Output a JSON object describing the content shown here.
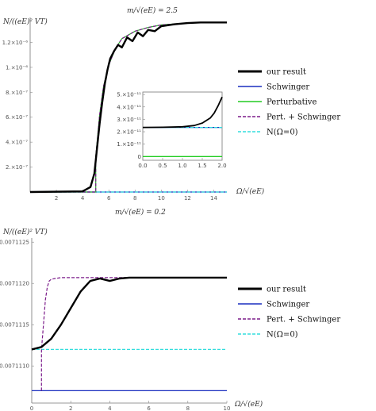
{
  "chart_data": [
    {
      "type": "line",
      "title": "m/√(eE) = 2.5",
      "ylabel": "N/((eE)² VT)",
      "xlabel": "Ω/√(eE)",
      "xlim": [
        0,
        15
      ],
      "ylim": [
        0,
        1.4e-06
      ],
      "x_ticks": [
        2,
        4,
        6,
        8,
        10,
        12,
        14
      ],
      "y_ticks": [
        {
          "value": 2e-07,
          "label": "2.×10⁻⁷"
        },
        {
          "value": 4e-07,
          "label": "4.×10⁻⁷"
        },
        {
          "value": 6e-07,
          "label": "6.×10⁻⁷"
        },
        {
          "value": 8e-07,
          "label": "8.×10⁻⁷"
        },
        {
          "value": 1e-06,
          "label": "1.×10⁻⁶"
        },
        {
          "value": 1.2e-06,
          "label": "1.2×10⁻⁶"
        }
      ],
      "series": [
        {
          "name": "our result",
          "color": "#000000",
          "style": "solid",
          "x": [
            0,
            4.0,
            4.6,
            4.9,
            5.1,
            5.3,
            5.5,
            5.7,
            5.9,
            6.1,
            6.4,
            6.7,
            7.0,
            7.4,
            7.8,
            8.2,
            8.6,
            9.0,
            9.5,
            10,
            11,
            12,
            13,
            14,
            15
          ],
          "y": [
            0,
            5e-09,
            4e-08,
            1.5e-07,
            3.5e-07,
            5.5e-07,
            7.2e-07,
            8.7e-07,
            9.8e-07,
            1.07e-06,
            1.13e-06,
            1.18e-06,
            1.16e-06,
            1.24e-06,
            1.21e-06,
            1.28e-06,
            1.25e-06,
            1.3e-06,
            1.29e-06,
            1.33e-06,
            1.345e-06,
            1.355e-06,
            1.36e-06,
            1.36e-06,
            1.36e-06
          ]
        },
        {
          "name": "Schwinger",
          "color": "#1a2fbf",
          "style": "solid",
          "x": [
            0,
            15
          ],
          "y": [
            0,
            0
          ]
        },
        {
          "name": "Perturbative",
          "color": "#22cc22",
          "style": "solid",
          "x": [
            0,
            5.0,
            5.0,
            5.3,
            5.6,
            6.0,
            6.5,
            7.0,
            8,
            9,
            10,
            12,
            15
          ],
          "y": [
            0,
            0,
            2.8e-07,
            6.2e-07,
            8.5e-07,
            1.02e-06,
            1.15e-06,
            1.23e-06,
            1.29e-06,
            1.32e-06,
            1.34e-06,
            1.355e-06,
            1.36e-06
          ]
        },
        {
          "name": "Pert. + Schwinger",
          "color": "#7b1b8a",
          "style": "dashed",
          "x": [
            0,
            5.0,
            5.0,
            5.3,
            5.6,
            6.0,
            6.5,
            7.0,
            8,
            9,
            10,
            12,
            15
          ],
          "y": [
            0,
            0,
            2.8e-07,
            6.2e-07,
            8.5e-07,
            1.02e-06,
            1.15e-06,
            1.23e-06,
            1.29e-06,
            1.32e-06,
            1.34e-06,
            1.355e-06,
            1.36e-06
          ]
        },
        {
          "name": "N(Ω=0)",
          "color": "#33dddd",
          "style": "dashed",
          "x": [
            0,
            15
          ],
          "y": [
            0,
            0
          ]
        }
      ],
      "inset": {
        "xlim": [
          0,
          2
        ],
        "ylim": [
          -3e-12,
          5.2e-11
        ],
        "x_ticks": [
          "0.0",
          "0.5",
          "1.0",
          "1.5",
          "2.0"
        ],
        "y_ticks": [
          {
            "value": 0,
            "label": "0"
          },
          {
            "value": 1e-11,
            "label": "1.×10⁻¹¹"
          },
          {
            "value": 2e-11,
            "label": "2.×10⁻¹¹"
          },
          {
            "value": 3e-11,
            "label": "3.×10⁻¹¹"
          },
          {
            "value": 4e-11,
            "label": "4.×10⁻¹¹"
          },
          {
            "value": 5e-11,
            "label": "5.×10⁻¹¹"
          }
        ],
        "series": [
          {
            "name": "our result",
            "color": "#000000",
            "style": "solid",
            "x": [
              0,
              0.5,
              1.0,
              1.3,
              1.5,
              1.7,
              1.8,
              1.9,
              2.0
            ],
            "y": [
              2.35e-11,
              2.36e-11,
              2.4e-11,
              2.5e-11,
              2.7e-11,
              3.1e-11,
              3.5e-11,
              4.1e-11,
              4.8e-11
            ]
          },
          {
            "name": "Schwinger",
            "color": "#1a2fbf",
            "style": "solid",
            "x": [
              0,
              2
            ],
            "y": [
              2.35e-11,
              2.35e-11
            ]
          },
          {
            "name": "Perturbative",
            "color": "#22cc22",
            "style": "solid",
            "x": [
              0,
              2
            ],
            "y": [
              0,
              0
            ]
          },
          {
            "name": "N(Ω=0)",
            "color": "#33dddd",
            "style": "dashed",
            "x": [
              0,
              2
            ],
            "y": [
              2.35e-11,
              2.35e-11
            ]
          }
        ]
      },
      "legend": {
        "placement": "right",
        "entries": [
          {
            "label": "our result",
            "color": "#000000",
            "style": "solid",
            "width": 3
          },
          {
            "label": "Schwinger",
            "color": "#1a2fbf",
            "style": "solid",
            "width": 1.5
          },
          {
            "label": "Perturbative",
            "color": "#22cc22",
            "style": "solid",
            "width": 1.5
          },
          {
            "label": "Pert. + Schwinger",
            "color": "#7b1b8a",
            "style": "dashed",
            "width": 1.5
          },
          {
            "label": "N(Ω=0)",
            "color": "#33dddd",
            "style": "dashed",
            "width": 1.5
          }
        ]
      }
    },
    {
      "type": "line",
      "title": "m/√(eE) = 0.2",
      "ylabel": "N/((eE)² VT)",
      "xlabel": "Ω/√(eE)",
      "xlim": [
        0,
        10
      ],
      "ylim": [
        0.00711055,
        0.00711255
      ],
      "x_ticks": [
        0,
        2,
        4,
        6,
        8,
        10
      ],
      "y_ticks": [
        {
          "value": 0.007111,
          "label": "0.0071110"
        },
        {
          "value": 0.0071115,
          "label": "0.0071115"
        },
        {
          "value": 0.007112,
          "label": "0.0071120"
        },
        {
          "value": 0.0071125,
          "label": "0.0071125"
        }
      ],
      "series": [
        {
          "name": "our result",
          "color": "#000000",
          "style": "solid",
          "x": [
            0,
            0.5,
            1.0,
            1.5,
            2.0,
            2.5,
            3.0,
            3.5,
            4.0,
            4.5,
            5.0,
            6,
            7,
            8,
            10
          ],
          "y": [
            0.0071112,
            0.00711123,
            0.00711133,
            0.0071115,
            0.0071117,
            0.0071119,
            0.00711203,
            0.00711206,
            0.00711203,
            0.00711206,
            0.00711207,
            0.00711207,
            0.00711207,
            0.00711207,
            0.00711207
          ]
        },
        {
          "name": "Schwinger",
          "color": "#1a2fbf",
          "style": "solid",
          "x": [
            0,
            10
          ],
          "y": [
            0.0071107,
            0.0071107
          ]
        },
        {
          "name": "Pert. + Schwinger",
          "color": "#7b1b8a",
          "style": "dashed",
          "x": [
            0.5,
            0.5,
            0.6,
            0.7,
            0.8,
            0.9,
            1.0,
            1.2,
            1.5,
            2,
            3,
            10
          ],
          "y": [
            0.0071107,
            0.0071112,
            0.0071115,
            0.0071118,
            0.00711196,
            0.00711203,
            0.00711205,
            0.00711206,
            0.00711207,
            0.00711207,
            0.00711207,
            0.00711207
          ]
        },
        {
          "name": "N(Ω=0)",
          "color": "#33dddd",
          "style": "dashed",
          "x": [
            0,
            10
          ],
          "y": [
            0.0071112,
            0.0071112
          ]
        }
      ],
      "legend": {
        "placement": "right",
        "entries": [
          {
            "label": "our result",
            "color": "#000000",
            "style": "solid",
            "width": 3
          },
          {
            "label": "Schwinger",
            "color": "#1a2fbf",
            "style": "solid",
            "width": 1.5
          },
          {
            "label": "Pert. + Schwinger",
            "color": "#7b1b8a",
            "style": "dashed",
            "width": 1.5
          },
          {
            "label": "N(Ω=0)",
            "color": "#33dddd",
            "style": "dashed",
            "width": 1.5
          }
        ]
      }
    }
  ]
}
